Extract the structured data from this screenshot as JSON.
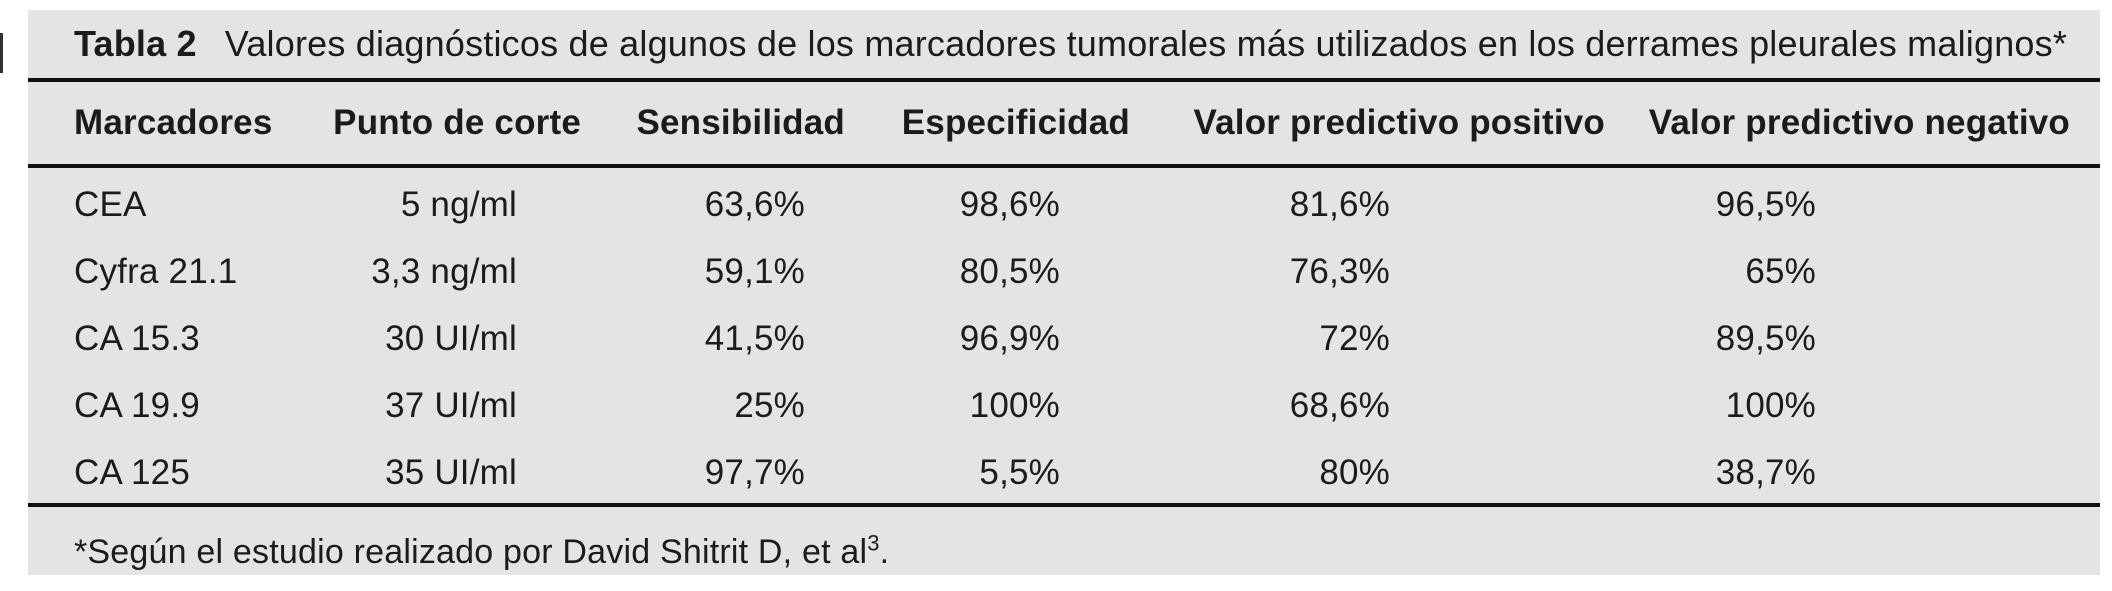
{
  "colors": {
    "panel_background": "#e4e4e6",
    "text": "#1b1b1d",
    "rule": "#121212"
  },
  "table": {
    "caption_label": "Tabla 2",
    "caption_text": "Valores diagnósticos de algunos de los marcadores tumorales más utilizados en los derrames pleurales malignos*",
    "columns": [
      "Marcadores",
      "Punto de corte",
      "Sensibilidad",
      "Especificidad",
      "Valor predictivo positivo",
      "Valor predictivo negativo"
    ],
    "rows": [
      [
        "CEA",
        "5 ng/ml",
        "63,6%",
        "98,6%",
        "81,6%",
        "96,5%"
      ],
      [
        "Cyfra 21.1",
        "3,3 ng/ml",
        "59,1%",
        "80,5%",
        "76,3%",
        "65%"
      ],
      [
        "CA 15.3",
        "30 UI/ml",
        "41,5%",
        "96,9%",
        "72%",
        "89,5%"
      ],
      [
        "CA 19.9",
        "37 UI/ml",
        "25%",
        "100%",
        "68,6%",
        "100%"
      ],
      [
        "CA 125",
        "35 UI/ml",
        "97,7%",
        "5,5%",
        "80%",
        "38,7%"
      ]
    ],
    "footnote_prefix": "*Según el estudio realizado por David Shitrit D, et al",
    "footnote_sup": "3",
    "footnote_suffix": "."
  }
}
